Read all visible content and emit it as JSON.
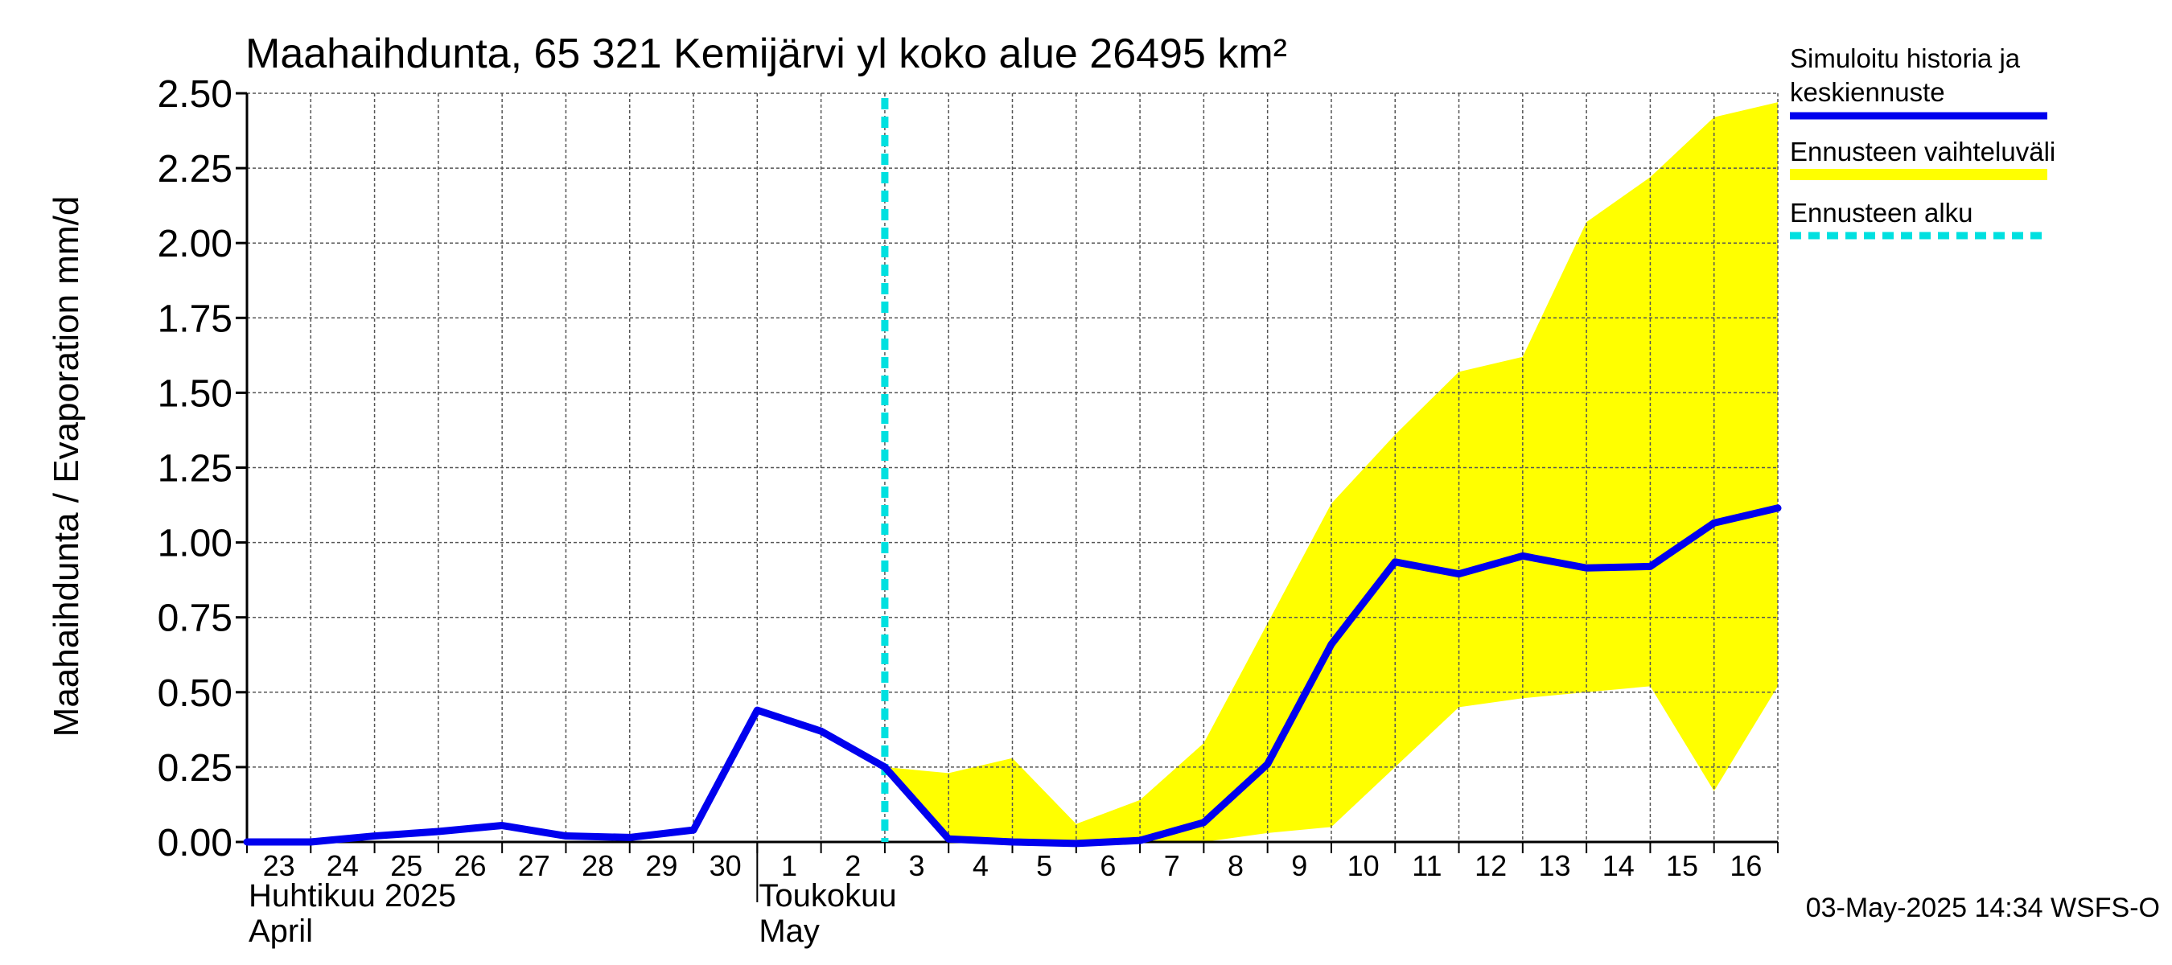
{
  "chart_data": {
    "type": "line",
    "title": "Maahaihdunta, 65 321 Kemijärvi yl koko alue 26495 km²",
    "ylabel": "Maahaihdunta / Evaporation   mm/d",
    "ylim": [
      0,
      2.5
    ],
    "yticks": [
      "0.00",
      "0.25",
      "0.50",
      "0.75",
      "1.00",
      "1.25",
      "1.50",
      "1.75",
      "2.00",
      "2.25",
      "2.50"
    ],
    "x_dates": [
      "2025-04-23",
      "2025-04-24",
      "2025-04-25",
      "2025-04-26",
      "2025-04-27",
      "2025-04-28",
      "2025-04-29",
      "2025-04-30",
      "2025-05-01",
      "2025-05-02",
      "2025-05-03",
      "2025-05-04",
      "2025-05-05",
      "2025-05-06",
      "2025-05-07",
      "2025-05-08",
      "2025-05-09",
      "2025-05-10",
      "2025-05-11",
      "2025-05-12",
      "2025-05-13",
      "2025-05-14",
      "2025-05-15",
      "2025-05-16",
      "2025-05-17"
    ],
    "day_labels": [
      "23",
      "24",
      "25",
      "26",
      "27",
      "28",
      "29",
      "30",
      "1",
      "2",
      "3",
      "4",
      "5",
      "6",
      "7",
      "8",
      "9",
      "10",
      "11",
      "12",
      "13",
      "14",
      "15",
      "16"
    ],
    "month_labels": [
      {
        "line1": "Huhtikuu  2025",
        "line2": "April"
      },
      {
        "line1": "Toukokuu",
        "line2": "May"
      }
    ],
    "series": [
      {
        "name": "Simuloitu historia ja keskiennuste",
        "color": "#0000ee",
        "values": [
          0.0,
          0.0,
          0.02,
          0.035,
          0.055,
          0.02,
          0.015,
          0.04,
          0.44,
          0.37,
          0.25,
          0.01,
          0.0,
          -0.005,
          0.005,
          0.065,
          0.26,
          0.66,
          0.935,
          0.895,
          0.955,
          0.915,
          0.92,
          1.065,
          1.115
        ]
      }
    ],
    "band": {
      "name": "Ennusteen vaihteluväli",
      "color": "#ffff00",
      "start_index": 10,
      "upper": [
        0.25,
        0.23,
        0.28,
        0.06,
        0.14,
        0.33,
        0.73,
        1.13,
        1.36,
        1.57,
        1.62,
        2.07,
        2.22,
        2.42,
        2.47
      ],
      "lower": [
        0.25,
        0.0,
        0.0,
        0.0,
        0.0,
        0.0,
        0.03,
        0.05,
        0.25,
        0.45,
        0.48,
        0.5,
        0.52,
        0.17,
        0.52
      ]
    },
    "forecast_start": {
      "name": "Ennusteen alku",
      "color": "#00e0e0",
      "x_index": 10
    },
    "legend": {
      "placement": "right",
      "entries": [
        "Simuloitu historia ja\nkeskiennuste",
        "Ennusteen vaihteluväli",
        "Ennusteen alku"
      ]
    },
    "grid": true,
    "footer": "03-May-2025 14:34 WSFS-O"
  }
}
